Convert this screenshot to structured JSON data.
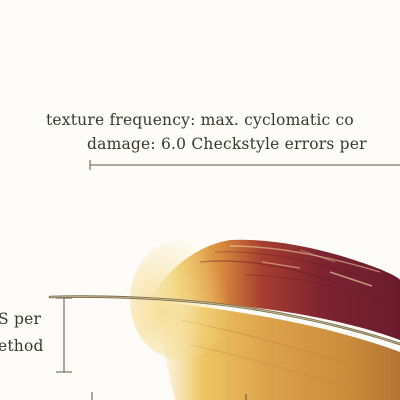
{
  "legend": {
    "texture_line": "texture frequency: max. cyclomatic co",
    "damage_line": "damage: 6.0 Checkstyle errors per"
  },
  "side_label": {
    "line1": "S per",
    "line2": "ethod"
  },
  "colors": {
    "background": "#fdfcf9",
    "text": "#3a3632",
    "feather_dark": "#7a1f2e",
    "feather_mid": "#a3402f",
    "feather_light": "#e7b14a",
    "quill": "#6b5a3b",
    "rule": "#5a524a"
  }
}
